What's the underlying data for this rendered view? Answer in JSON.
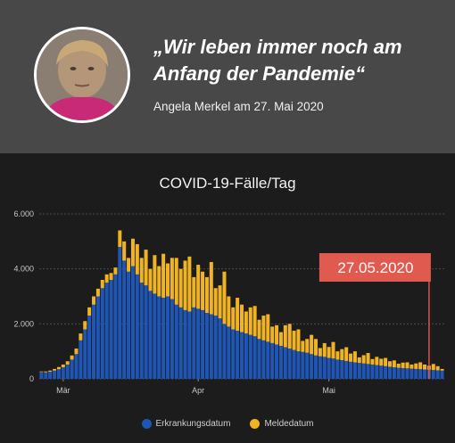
{
  "header": {
    "quote": "„Wir leben immer noch am Anfang der Pandemie“",
    "attribution": "Angela Merkel am 27. Mai 2020"
  },
  "colors": {
    "background": "#1c1c1c",
    "header_background": "#484848",
    "erkrankung": "#1f56b5",
    "melde": "#f0b323",
    "annotation": "#e05a4f"
  },
  "chart_data": {
    "type": "bar",
    "title": "COVID-19-Fälle/Tag",
    "stacked": true,
    "x_ticks": [
      "Mär",
      "Apr",
      "Mai"
    ],
    "y_ticks": [
      "6.000",
      "4.000",
      "2.000",
      "0"
    ],
    "ylim": [
      0,
      6000
    ],
    "grid": true,
    "legend_position": "bottom",
    "annotation": {
      "label": "27.05.2020"
    },
    "series": [
      {
        "name": "Erkrankungsdatum",
        "color": "#1f56b5",
        "values": [
          250,
          240,
          260,
          300,
          350,
          420,
          520,
          700,
          900,
          1400,
          1800,
          2300,
          2700,
          3000,
          3300,
          3500,
          3600,
          3800,
          4800,
          4300,
          3900,
          4100,
          3800,
          3500,
          3400,
          3200,
          3100,
          3000,
          2950,
          3000,
          2900,
          2700,
          2600,
          2500,
          2450,
          2600,
          2550,
          2500,
          2400,
          2350,
          2300,
          2200,
          2000,
          1900,
          1800,
          1750,
          1700,
          1650,
          1600,
          1550,
          1450,
          1400,
          1350,
          1300,
          1250,
          1200,
          1150,
          1100,
          1050,
          1000,
          980,
          950,
          900,
          850,
          820,
          800,
          760,
          740,
          700,
          680,
          650,
          620,
          600,
          580,
          560,
          540,
          520,
          500,
          480,
          460,
          440,
          420,
          400,
          390,
          380,
          370,
          360,
          350,
          340,
          330,
          320,
          310,
          300
        ]
      },
      {
        "name": "Meldedatum",
        "color": "#f0b323",
        "values": [
          20,
          30,
          40,
          60,
          80,
          100,
          120,
          150,
          200,
          250,
          300,
          300,
          300,
          280,
          300,
          300,
          250,
          250,
          600,
          700,
          500,
          1000,
          1100,
          900,
          1300,
          800,
          1400,
          1100,
          1600,
          1200,
          1500,
          1700,
          1400,
          1800,
          2000,
          1100,
          1600,
          1400,
          1300,
          1900,
          1000,
          1200,
          1900,
          1100,
          800,
          1200,
          1000,
          800,
          1000,
          1100,
          700,
          900,
          1000,
          600,
          700,
          500,
          800,
          900,
          700,
          800,
          400,
          500,
          700,
          600,
          300,
          500,
          400,
          600,
          300,
          400,
          500,
          300,
          400,
          200,
          300,
          400,
          200,
          300,
          250,
          300,
          200,
          250,
          150,
          200,
          220,
          150,
          200,
          250,
          180,
          150,
          220,
          150,
          60
        ]
      }
    ]
  }
}
